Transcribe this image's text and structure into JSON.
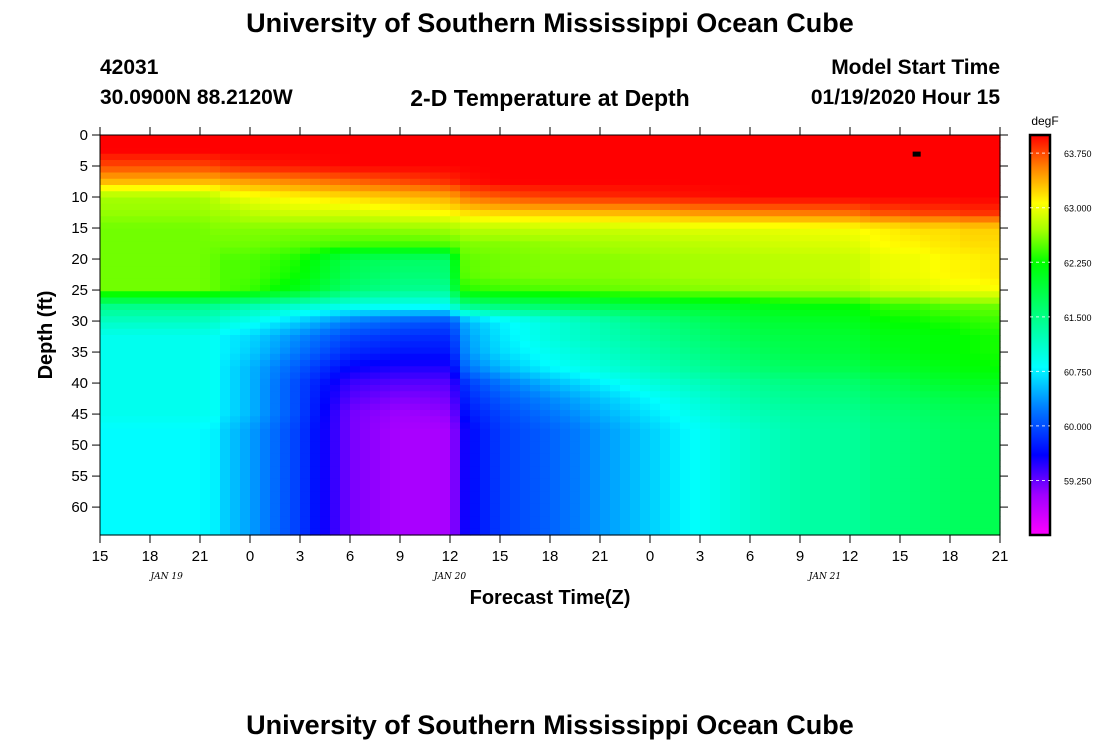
{
  "page": {
    "title_top": "University of Southern Mississippi Ocean Cube",
    "title_bottom": "University of Southern Mississippi Ocean Cube",
    "station_id": "42031",
    "station_location": "30.0900N 88.2120W",
    "plot_title": "2-D Temperature at Depth",
    "model_start_label": "Model Start Time",
    "model_start_value": "01/19/2020 Hour 15"
  },
  "chart_data": {
    "type": "heatmap",
    "title": "2-D Temperature at Depth",
    "xlabel": "Forecast Time(Z)",
    "ylabel": "Depth (ft)",
    "x_hours": [
      0,
      3,
      6,
      9,
      12,
      15,
      18,
      21,
      24,
      27,
      30,
      33,
      36,
      39,
      42,
      45,
      48,
      51,
      54
    ],
    "x_tick_labels": [
      "15",
      "18",
      "21",
      "0",
      "3",
      "6",
      "9",
      "12",
      "15",
      "18",
      "21",
      "0",
      "3",
      "6",
      "9",
      "12",
      "15",
      "18",
      "21"
    ],
    "date_labels": [
      {
        "text": "JAN 19",
        "hour": 4
      },
      {
        "text": "JAN 20",
        "hour": 21
      },
      {
        "text": "JAN 21",
        "hour": 43.5
      }
    ],
    "y_ticks": [
      0,
      5,
      10,
      15,
      20,
      25,
      30,
      35,
      40,
      45,
      50,
      55,
      60
    ],
    "ylim": [
      0,
      64.5
    ],
    "xlim": [
      0,
      54
    ],
    "colorbar": {
      "unit": "degF",
      "min": 58.5,
      "max": 64.0,
      "tick_values": [
        63.75,
        63.0,
        62.25,
        61.5,
        60.75,
        60.0,
        59.25
      ],
      "tick_labels": [
        "63.750",
        "63.000",
        "62.250",
        "61.500",
        "60.750",
        "60.000",
        "59.250"
      ]
    },
    "marker": {
      "hour": 49,
      "depth": 3,
      "color": "#000000"
    },
    "depths": [
      0,
      2.5,
      5,
      7.5,
      10,
      12.5,
      15,
      17.5,
      20,
      22.5,
      25,
      27.5,
      30,
      32.5,
      35,
      37.5,
      40,
      42.5,
      45,
      47.5,
      50,
      52.5,
      55,
      57.5,
      60,
      62.5,
      64.5
    ],
    "profile_hours": [
      0,
      6,
      7,
      7.5,
      9,
      12,
      15,
      18,
      21,
      21.5,
      22,
      24,
      27,
      30,
      33,
      36,
      39,
      42,
      45.5,
      46,
      46.5,
      48,
      49,
      50,
      51,
      52,
      54
    ],
    "profiles": [
      [
        64.0,
        64.0,
        64.0,
        64.0,
        64.0,
        64.0,
        64.0,
        64.0,
        64.0,
        64.0,
        64.0,
        64.0,
        64.0,
        64.0,
        64.0,
        64.0,
        64.0,
        64.0,
        64.0,
        64.0,
        64.0,
        64.0,
        64.0,
        64.0,
        64.0,
        64.0,
        64.0
      ],
      [
        64.0,
        64.0,
        64.0,
        64.0,
        64.0,
        64.0,
        64.0,
        64.0,
        64.0,
        64.0,
        64.0,
        64.0,
        64.0,
        64.0,
        64.0,
        64.0,
        64.0,
        64.0,
        64.0,
        64.0,
        64.0,
        64.0,
        64.0,
        64.0,
        64.0,
        64.0,
        64.0
      ],
      [
        63.75,
        63.75,
        63.8,
        63.85,
        63.9,
        63.95,
        64.0,
        64.0,
        64.0,
        64.0,
        64.0,
        64.0,
        64.0,
        64.0,
        64.0,
        64.0,
        64.0,
        64.0,
        64.0,
        64.0,
        64.0,
        64.0,
        64.0,
        64.0,
        64.0,
        64.0,
        64.0
      ],
      [
        63.35,
        63.35,
        63.35,
        63.4,
        63.45,
        63.55,
        63.65,
        63.75,
        63.85,
        63.9,
        63.95,
        64.0,
        64.0,
        64.0,
        64.0,
        64.0,
        64.0,
        64.0,
        64.0,
        64.0,
        64.0,
        64.0,
        64.0,
        64.0,
        64.0,
        64.0,
        64.0
      ],
      [
        62.7,
        62.7,
        62.8,
        62.9,
        63.0,
        63.1,
        63.2,
        63.3,
        63.4,
        63.5,
        63.6,
        63.7,
        63.8,
        63.85,
        63.9,
        63.95,
        64.0,
        64.0,
        64.0,
        64.0,
        64.0,
        64.0,
        64.0,
        64.0,
        64.0,
        64.0,
        64.0
      ],
      [
        62.65,
        62.65,
        62.7,
        62.7,
        62.8,
        62.9,
        62.9,
        63.0,
        63.1,
        63.15,
        63.2,
        63.25,
        63.3,
        63.35,
        63.4,
        63.5,
        63.55,
        63.6,
        63.65,
        63.7,
        63.75,
        63.75,
        63.8,
        63.8,
        63.8,
        63.85,
        63.85
      ],
      [
        62.55,
        62.55,
        62.6,
        62.6,
        62.6,
        62.6,
        62.6,
        62.65,
        62.7,
        62.75,
        62.8,
        62.8,
        62.85,
        62.85,
        62.9,
        62.95,
        62.95,
        63.0,
        63.05,
        63.1,
        63.1,
        63.15,
        63.2,
        63.2,
        63.2,
        63.25,
        63.25
      ],
      [
        62.55,
        62.55,
        62.55,
        62.55,
        62.55,
        62.5,
        62.45,
        62.45,
        62.5,
        62.55,
        62.6,
        62.6,
        62.65,
        62.7,
        62.75,
        62.8,
        62.85,
        62.9,
        62.95,
        63.0,
        63.05,
        63.1,
        63.1,
        63.15,
        63.15,
        63.2,
        63.2
      ],
      [
        62.55,
        62.55,
        62.5,
        62.45,
        62.45,
        62.3,
        61.8,
        61.7,
        61.65,
        62.45,
        62.5,
        62.55,
        62.6,
        62.6,
        62.65,
        62.7,
        62.75,
        62.8,
        62.85,
        62.9,
        62.95,
        63.0,
        63.0,
        63.05,
        63.1,
        63.1,
        63.15
      ],
      [
        62.55,
        62.55,
        62.5,
        62.45,
        62.45,
        62.25,
        61.75,
        61.6,
        61.6,
        62.4,
        62.5,
        62.55,
        62.6,
        62.6,
        62.65,
        62.7,
        62.75,
        62.8,
        62.85,
        62.9,
        62.95,
        63.0,
        63.0,
        63.05,
        63.1,
        63.1,
        63.15
      ],
      [
        62.55,
        62.55,
        62.5,
        62.45,
        62.4,
        62.1,
        61.6,
        61.45,
        61.4,
        62.25,
        62.35,
        62.4,
        62.45,
        62.5,
        62.55,
        62.6,
        62.65,
        62.7,
        62.75,
        62.8,
        62.85,
        62.9,
        62.9,
        62.95,
        63.0,
        63.0,
        63.05
      ],
      [
        61.5,
        61.5,
        61.45,
        61.4,
        61.3,
        61.1,
        60.95,
        60.9,
        60.85,
        61.4,
        61.5,
        61.6,
        61.7,
        61.8,
        61.9,
        62.0,
        62.1,
        62.2,
        62.25,
        62.3,
        62.35,
        62.4,
        62.4,
        62.45,
        62.5,
        62.5,
        62.55
      ],
      [
        61.15,
        61.15,
        61.1,
        61.0,
        60.9,
        60.6,
        60.25,
        60.1,
        60.0,
        60.25,
        60.5,
        60.75,
        61.0,
        61.25,
        61.5,
        61.7,
        61.9,
        62.0,
        62.1,
        62.15,
        62.2,
        62.25,
        62.25,
        62.3,
        62.3,
        62.35,
        62.4
      ],
      [
        60.9,
        60.9,
        60.85,
        60.75,
        60.65,
        60.3,
        59.95,
        59.85,
        59.8,
        60.1,
        60.4,
        60.7,
        61.0,
        61.2,
        61.4,
        61.6,
        61.8,
        61.9,
        62.0,
        62.05,
        62.1,
        62.15,
        62.15,
        62.2,
        62.2,
        62.25,
        62.3
      ],
      [
        60.9,
        60.9,
        60.85,
        60.75,
        60.6,
        60.2,
        59.8,
        59.7,
        59.7,
        60.0,
        60.35,
        60.65,
        60.9,
        61.1,
        61.3,
        61.5,
        61.7,
        61.85,
        61.95,
        62.0,
        62.05,
        62.1,
        62.15,
        62.2,
        62.2,
        62.25,
        62.3
      ],
      [
        60.9,
        60.9,
        60.85,
        60.7,
        60.5,
        60.05,
        59.6,
        59.5,
        59.5,
        59.85,
        60.2,
        60.5,
        60.8,
        61.0,
        61.2,
        61.4,
        61.6,
        61.75,
        61.85,
        61.9,
        61.95,
        62.0,
        62.05,
        62.1,
        62.15,
        62.2,
        62.25
      ],
      [
        60.9,
        60.9,
        60.85,
        60.7,
        60.5,
        59.95,
        59.4,
        59.3,
        59.3,
        59.6,
        59.9,
        60.2,
        60.5,
        60.75,
        61.0,
        61.2,
        61.4,
        61.55,
        61.65,
        61.7,
        61.75,
        61.8,
        61.9,
        61.95,
        62.0,
        62.05,
        62.1
      ],
      [
        60.9,
        60.9,
        60.85,
        60.7,
        60.5,
        59.95,
        59.3,
        59.15,
        59.2,
        59.5,
        59.8,
        60.05,
        60.3,
        60.55,
        60.8,
        61.05,
        61.3,
        61.45,
        61.55,
        61.6,
        61.65,
        61.7,
        61.75,
        61.8,
        61.85,
        61.9,
        61.95
      ],
      [
        60.9,
        60.9,
        60.85,
        60.7,
        60.5,
        59.95,
        59.2,
        59.05,
        59.1,
        59.4,
        59.7,
        59.95,
        60.2,
        60.45,
        60.7,
        60.95,
        61.2,
        61.35,
        61.45,
        61.5,
        61.55,
        61.6,
        61.65,
        61.7,
        61.75,
        61.8,
        61.85
      ],
      [
        60.8,
        60.8,
        60.75,
        60.6,
        60.4,
        59.9,
        59.2,
        59.0,
        59.0,
        59.3,
        59.6,
        59.9,
        60.1,
        60.35,
        60.6,
        60.85,
        61.1,
        61.3,
        61.4,
        61.45,
        61.5,
        61.55,
        61.6,
        61.65,
        61.7,
        61.75,
        61.8
      ],
      [
        60.8,
        60.8,
        60.75,
        60.6,
        60.4,
        59.9,
        59.2,
        59.0,
        59.0,
        59.3,
        59.6,
        59.9,
        60.1,
        60.35,
        60.6,
        60.85,
        61.1,
        61.3,
        61.4,
        61.45,
        61.5,
        61.55,
        61.6,
        61.65,
        61.7,
        61.75,
        61.8
      ],
      [
        60.8,
        60.8,
        60.75,
        60.6,
        60.4,
        59.9,
        59.2,
        59.0,
        59.0,
        59.3,
        59.6,
        59.9,
        60.1,
        60.35,
        60.6,
        60.85,
        61.1,
        61.3,
        61.4,
        61.45,
        61.5,
        61.55,
        61.6,
        61.65,
        61.7,
        61.75,
        61.8
      ],
      [
        60.8,
        60.8,
        60.75,
        60.6,
        60.4,
        59.9,
        59.2,
        59.0,
        59.0,
        59.3,
        59.6,
        59.9,
        60.1,
        60.35,
        60.6,
        60.85,
        61.1,
        61.3,
        61.4,
        61.45,
        61.5,
        61.55,
        61.6,
        61.65,
        61.7,
        61.75,
        61.8
      ],
      [
        60.8,
        60.8,
        60.75,
        60.6,
        60.4,
        59.9,
        59.2,
        59.0,
        59.0,
        59.3,
        59.6,
        59.9,
        60.1,
        60.35,
        60.6,
        60.85,
        61.1,
        61.3,
        61.4,
        61.45,
        61.5,
        61.55,
        61.6,
        61.65,
        61.7,
        61.75,
        61.8
      ],
      [
        60.8,
        60.8,
        60.75,
        60.6,
        60.4,
        59.9,
        59.2,
        59.0,
        59.0,
        59.3,
        59.6,
        59.9,
        60.1,
        60.35,
        60.6,
        60.85,
        61.1,
        61.3,
        61.4,
        61.45,
        61.5,
        61.55,
        61.6,
        61.65,
        61.7,
        61.75,
        61.8
      ],
      [
        60.8,
        60.8,
        60.75,
        60.6,
        60.4,
        59.9,
        59.2,
        59.0,
        59.0,
        59.3,
        59.6,
        59.9,
        60.1,
        60.35,
        60.6,
        60.85,
        61.1,
        61.3,
        61.4,
        61.45,
        61.5,
        61.55,
        61.6,
        61.65,
        61.7,
        61.75,
        61.8
      ],
      [
        60.8,
        60.8,
        60.75,
        60.6,
        60.4,
        59.9,
        59.2,
        59.0,
        59.0,
        59.3,
        59.6,
        59.9,
        60.1,
        60.35,
        60.6,
        60.85,
        61.1,
        61.3,
        61.4,
        61.45,
        61.5,
        61.55,
        61.6,
        61.65,
        61.7,
        61.75,
        61.8
      ]
    ]
  }
}
